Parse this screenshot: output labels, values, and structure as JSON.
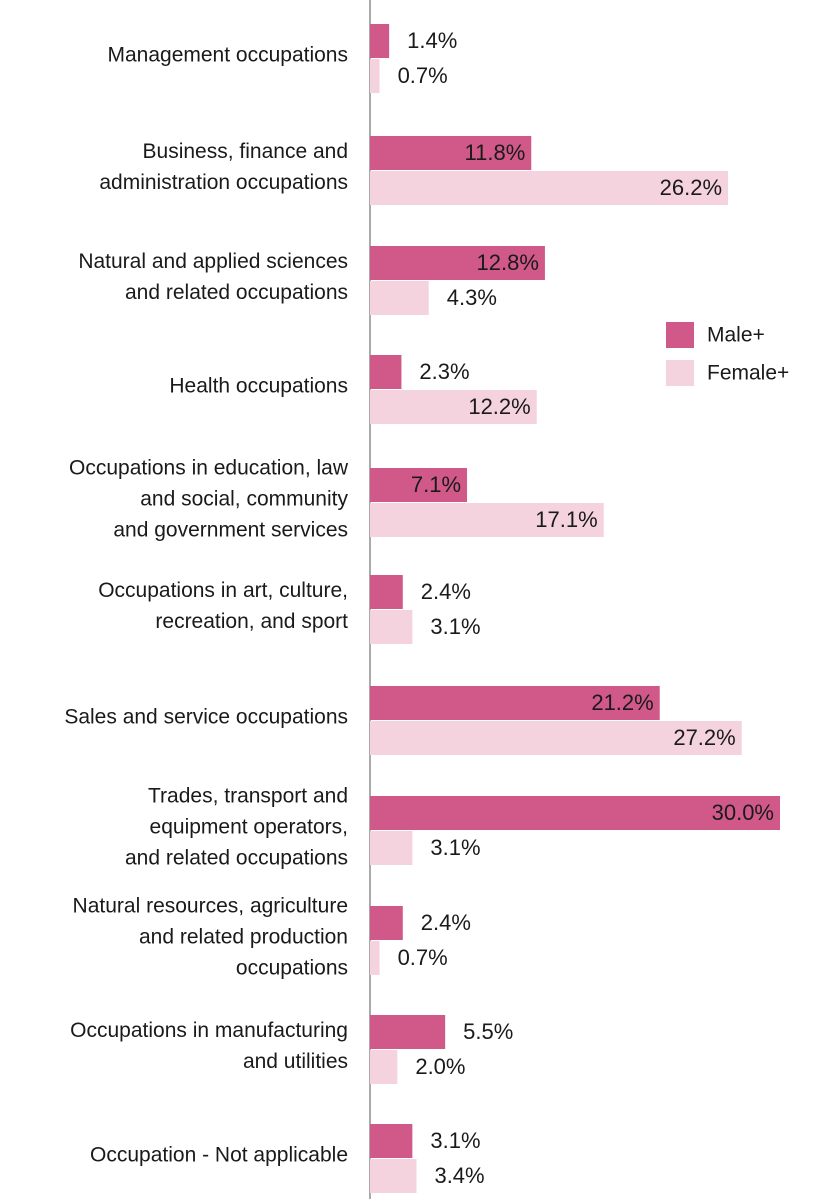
{
  "chart_data": {
    "type": "hbar",
    "categories": [
      [
        "Management occupations"
      ],
      [
        "Business, finance and",
        "administration occupations"
      ],
      [
        "Natural and applied sciences",
        "and related occupations"
      ],
      [
        "Health occupations"
      ],
      [
        "Occupations in education, law",
        "and social, community",
        "and government services"
      ],
      [
        "Occupations in art, culture,",
        "recreation, and sport"
      ],
      [
        "Sales and service occupations"
      ],
      [
        "Trades, transport and",
        "equipment operators,",
        "and related occupations"
      ],
      [
        "Natural resources, agriculture",
        "and related production",
        "occupations"
      ],
      [
        "Occupations in manufacturing",
        "and utilities"
      ],
      [
        "Occupation - Not applicable"
      ]
    ],
    "series": [
      {
        "name": "Male+",
        "color": "#d0598a",
        "values": [
          1.4,
          11.8,
          12.8,
          2.3,
          7.1,
          2.4,
          21.2,
          30.0,
          2.4,
          5.5,
          3.1
        ],
        "value_labels": [
          "1.4%",
          "11.8%",
          "12.8%",
          "2.3%",
          "7.1%",
          "2.4%",
          "21.2%",
          "30.0%",
          "2.4%",
          "5.5%",
          "3.1%"
        ]
      },
      {
        "name": "Female+",
        "color": "#f4d3df",
        "values": [
          0.7,
          26.2,
          4.3,
          12.2,
          17.1,
          3.1,
          27.2,
          3.1,
          0.7,
          2.0,
          3.4
        ],
        "value_labels": [
          "0.7%",
          "26.2%",
          "4.3%",
          "12.2%",
          "17.1%",
          "3.1%",
          "27.2%",
          "3.1%",
          "0.7%",
          "2.0%",
          "3.4%"
        ]
      }
    ]
  }
}
